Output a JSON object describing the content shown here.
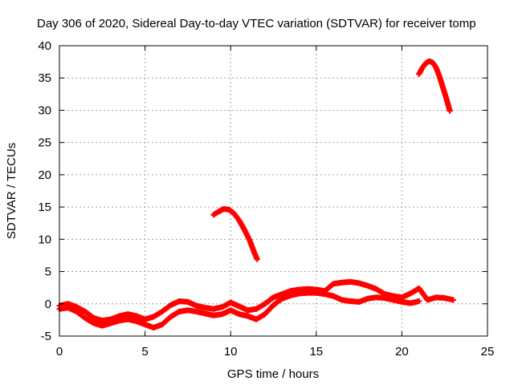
{
  "chart_data": {
    "type": "scatter",
    "title": "Day 306 of 2020, Sidereal Day-to-day VTEC variation (SDTVAR) for receiver tomp",
    "xlabel": "GPS time / hours",
    "ylabel": "SDTVAR / TECUs",
    "xlim": [
      0,
      25
    ],
    "ylim": [
      -5,
      40
    ],
    "x_ticks": [
      "0",
      "5",
      "10",
      "15",
      "20",
      "25"
    ],
    "y_ticks": [
      "-5",
      "0",
      "5",
      "10",
      "15",
      "20",
      "25",
      "30",
      "35",
      "40"
    ],
    "grid": true,
    "legend": "none",
    "series_color": "#ff0000",
    "series": [
      {
        "name": "baseline-upper",
        "x": [
          0.0,
          0.5,
          1.0,
          1.5,
          2.0,
          2.5,
          3.0,
          3.5,
          4.0,
          4.5,
          5.0,
          5.5,
          6.0,
          6.5,
          7.0,
          7.5,
          8.0,
          8.5,
          9.0,
          9.5,
          10.0,
          10.5,
          11.0,
          11.5,
          12.0,
          12.5,
          13.0,
          13.5,
          14.0,
          14.5,
          15.0,
          15.5,
          16.0,
          16.5,
          17.0,
          17.5,
          18.0,
          18.5,
          19.0,
          19.5,
          20.0,
          20.5,
          21.0,
          21.5,
          22.0,
          22.5,
          23.0
        ],
        "y": [
          -0.3,
          0.0,
          -0.5,
          -1.2,
          -2.2,
          -2.6,
          -2.4,
          -1.9,
          -1.6,
          -1.9,
          -2.4,
          -2.0,
          -1.2,
          -0.2,
          0.4,
          0.3,
          -0.3,
          -0.6,
          -0.8,
          -0.5,
          0.2,
          -0.4,
          -1.0,
          -0.8,
          0.0,
          1.0,
          1.5,
          2.0,
          2.2,
          2.3,
          2.2,
          2.0,
          3.1,
          3.3,
          3.4,
          3.2,
          2.8,
          2.3,
          1.5,
          1.2,
          1.0,
          1.6,
          2.4,
          0.6,
          1.0,
          0.9,
          0.6
        ]
      },
      {
        "name": "baseline-lower",
        "x": [
          0.0,
          0.5,
          1.0,
          1.5,
          2.0,
          2.5,
          3.0,
          3.5,
          4.0,
          4.5,
          5.0,
          5.5,
          6.0,
          6.5,
          7.0,
          7.5,
          8.0,
          8.5,
          9.0,
          9.5,
          10.0,
          10.5,
          11.0,
          11.5,
          12.0,
          12.5,
          13.0,
          13.5,
          14.0,
          14.5,
          15.0,
          15.5,
          16.0,
          16.5,
          17.0,
          17.5,
          18.0,
          18.5,
          19.0,
          19.5,
          20.0,
          20.5,
          21.0
        ],
        "y": [
          -0.8,
          -0.6,
          -1.2,
          -2.2,
          -3.0,
          -3.4,
          -3.0,
          -2.6,
          -2.4,
          -2.7,
          -3.2,
          -3.7,
          -3.2,
          -2.0,
          -1.2,
          -1.0,
          -1.2,
          -1.5,
          -1.8,
          -1.6,
          -1.0,
          -1.6,
          -1.9,
          -2.4,
          -1.6,
          -0.2,
          0.8,
          1.3,
          1.6,
          1.7,
          1.7,
          1.5,
          1.2,
          0.6,
          0.4,
          0.3,
          0.8,
          1.0,
          0.9,
          0.6,
          0.3,
          0.1,
          0.4
        ]
      },
      {
        "name": "arc-10h",
        "x": [
          9.0,
          9.3,
          9.6,
          9.9,
          10.2,
          10.5,
          10.8,
          11.1,
          11.4,
          11.55
        ],
        "y": [
          13.8,
          14.3,
          14.7,
          14.6,
          14.0,
          12.9,
          11.5,
          9.9,
          7.8,
          6.9
        ]
      },
      {
        "name": "arc-22h",
        "x": [
          21.0,
          21.2,
          21.4,
          21.6,
          21.8,
          22.0,
          22.2,
          22.4,
          22.6,
          22.8
        ],
        "y": [
          35.6,
          36.6,
          37.3,
          37.6,
          37.4,
          36.6,
          35.2,
          33.5,
          31.8,
          29.9
        ]
      }
    ]
  }
}
